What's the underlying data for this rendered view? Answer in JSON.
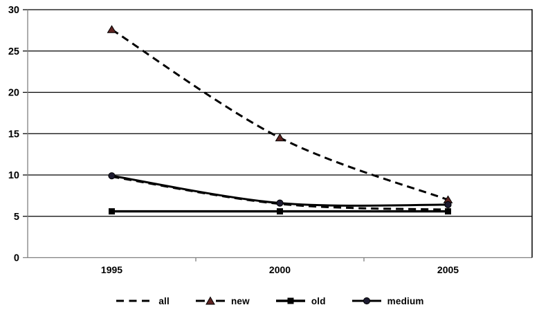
{
  "chart_data": {
    "type": "line",
    "title": "",
    "xlabel": "",
    "ylabel": "",
    "categories": [
      "1995",
      "2000",
      "2005"
    ],
    "yticks": [
      0,
      5,
      10,
      15,
      20,
      25,
      30
    ],
    "ylim": [
      0,
      30
    ],
    "grid": true,
    "smoothed": true,
    "legend_position": "bottom",
    "series": [
      {
        "name": "all",
        "values": [
          9.8,
          6.5,
          5.8
        ],
        "line_style": "dashed",
        "marker": "none",
        "line_color": "#000000",
        "marker_color": "#000000"
      },
      {
        "name": "new",
        "values": [
          27.6,
          14.5,
          7.0
        ],
        "line_style": "dashed",
        "marker": "triangle",
        "line_color": "#000000",
        "marker_color": "#5e2422"
      },
      {
        "name": "old",
        "values": [
          5.6,
          5.6,
          5.6
        ],
        "line_style": "solid",
        "marker": "square",
        "line_color": "#000000",
        "marker_color": "#000000"
      },
      {
        "name": "medium",
        "values": [
          9.9,
          6.6,
          6.4
        ],
        "line_style": "solid",
        "marker": "circle",
        "line_color": "#000000",
        "marker_color": "#1d1b30"
      }
    ]
  },
  "colors": {
    "background": "#ffffff",
    "gridline": "#000000",
    "axis_line": "#808080",
    "plot_border": "#000000",
    "text": "#000000"
  }
}
